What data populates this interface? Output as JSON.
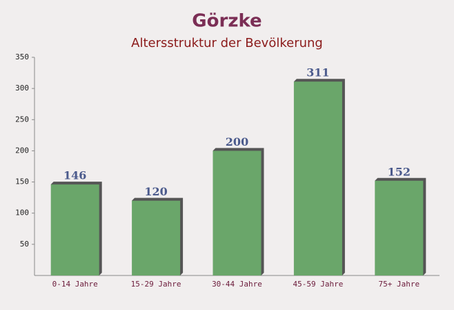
{
  "chart_data": {
    "type": "bar",
    "title": "Görzke",
    "subtitle": "Altersstruktur der Bevölkerung",
    "categories": [
      "0-14 Jahre",
      "15-29 Jahre",
      "30-44 Jahre",
      "45-59 Jahre",
      "75+ Jahre"
    ],
    "values": [
      146,
      120,
      200,
      311,
      152
    ],
    "color": "#6aa66a",
    "ylim": [
      0,
      350
    ],
    "yticks": [
      50,
      100,
      150,
      200,
      250,
      300,
      350
    ],
    "grid": false
  }
}
